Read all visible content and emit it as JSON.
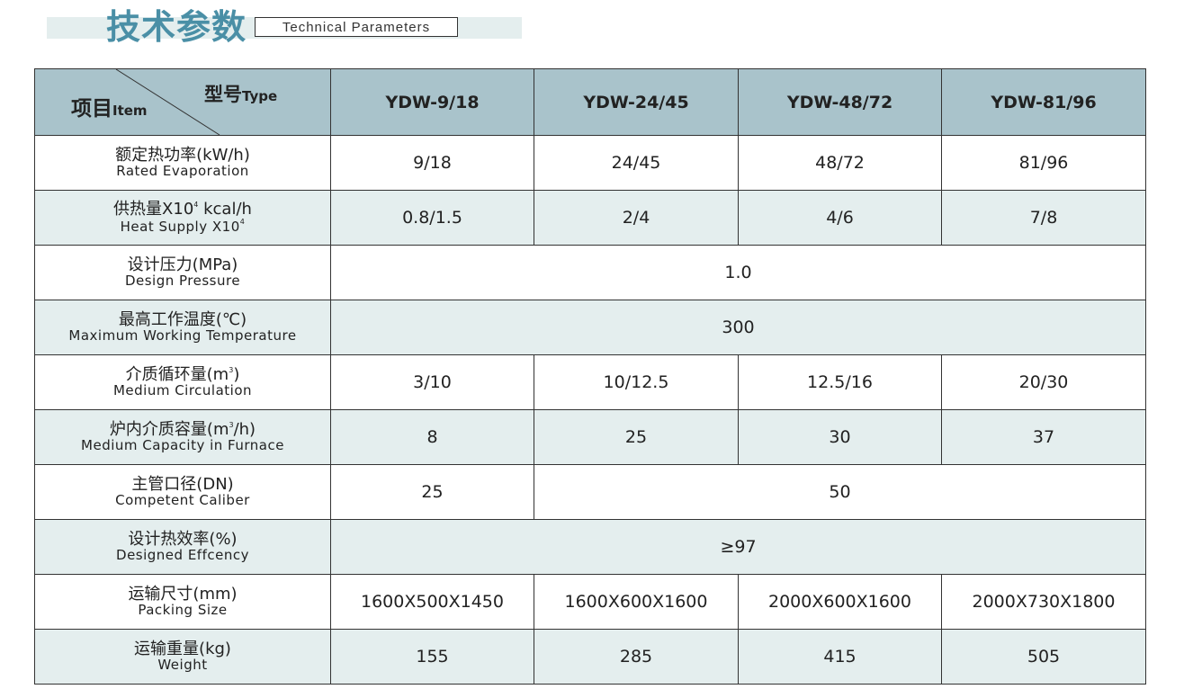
{
  "title": {
    "cn": "技术参数",
    "en": "Technical Parameters"
  },
  "header": {
    "type_cn": "型号",
    "type_en": "Type",
    "item_cn": "项目",
    "item_en": "Item",
    "models": [
      "YDW-9/18",
      "YDW-24/45",
      "YDW-48/72",
      "YDW-81/96"
    ]
  },
  "rows": [
    {
      "cn": "额定热功率(kW/h)",
      "en": "Rated  Evaporation",
      "values": [
        "9/18",
        "24/45",
        "48/72",
        "81/96"
      ]
    },
    {
      "cn_pre": "供热量X10",
      "cn_sup": "4",
      "cn_post": " kcal/h",
      "en_pre": "Heat Supply X10",
      "en_sup": "4",
      "values": [
        "0.8/1.5",
        "2/4",
        "4/6",
        "7/8"
      ]
    },
    {
      "cn": "设计压力(MPa)",
      "en": "Design Pressure",
      "value": "1.0"
    },
    {
      "cn": "最高工作温度(℃)",
      "en": "Maximum Working Temperature",
      "value": "300"
    },
    {
      "cn_pre": "介质循环量(m",
      "cn_sup": "3",
      "cn_post": ")",
      "en": "Medium Circulation",
      "values": [
        "3/10",
        "10/12.5",
        "12.5/16",
        "20/30"
      ]
    },
    {
      "cn_pre": "炉内介质容量(m",
      "cn_sup": "3",
      "cn_post": "/h)",
      "en": "Medium Capacity in Furnace",
      "values": [
        "8",
        "25",
        "30",
        "37"
      ]
    },
    {
      "cn": "主管口径(DN)",
      "en": "Competent Caliber",
      "first": "25",
      "rest": "50"
    },
    {
      "cn": "设计热效率(%)",
      "en": "Designed Effcency",
      "value": "≥97"
    },
    {
      "cn": "运输尺寸(mm)",
      "en": "Packing Size",
      "values": [
        "1600X500X1450",
        "1600X600X1600",
        "2000X600X1600",
        "2000X730X1800"
      ]
    },
    {
      "cn": "运输重量(kg)",
      "en": "Weight",
      "values": [
        "155",
        "285",
        "415",
        "505"
      ]
    }
  ],
  "colors": {
    "accent": "#4a8fa6",
    "header_bg": "#a9c3cb",
    "shade_bg": "#e4eeee"
  }
}
